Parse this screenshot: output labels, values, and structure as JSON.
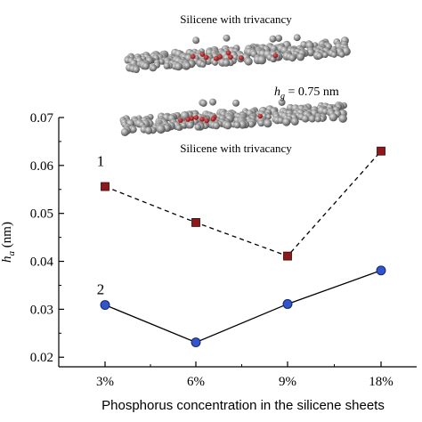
{
  "chart_data": {
    "type": "line",
    "categories": [
      "3%",
      "6%",
      "9%",
      "18%"
    ],
    "series": [
      {
        "name": "1",
        "values": [
          0.0556,
          0.0481,
          0.0411,
          0.063
        ],
        "color": "#8b1a1a",
        "marker": "square",
        "line_style": "dashed"
      },
      {
        "name": "2",
        "values": [
          0.0309,
          0.0231,
          0.0311,
          0.0381
        ],
        "color": "#3355cc",
        "marker": "circle",
        "line_style": "solid"
      }
    ],
    "title": "",
    "xlabel": "Phosphorus concentration in the silicene sheets",
    "ylabel": "h_a (nm)",
    "ylabel_main": "h",
    "ylabel_sub": "a",
    "ylabel_unit": " (nm)",
    "ylim": [
      0.018,
      0.07
    ],
    "yticks": [
      0.02,
      0.03,
      0.04,
      0.05,
      0.06,
      0.07
    ],
    "ytick_labels": [
      "0.02",
      "0.03",
      "0.04",
      "0.05",
      "0.06",
      "0.07"
    ],
    "grid": false,
    "legend": "none"
  },
  "annotations": {
    "top_structure_label": "Silicene with trivacancy",
    "bottom_structure_label": "Silicene with trivacancy",
    "gap_label_main": "h",
    "gap_label_sub": "g",
    "gap_label_value": " = 0.75 nm"
  },
  "colors": {
    "atom_gray": "#8a8a8a",
    "atom_red": "#b01e1e",
    "axis": "#000000"
  }
}
